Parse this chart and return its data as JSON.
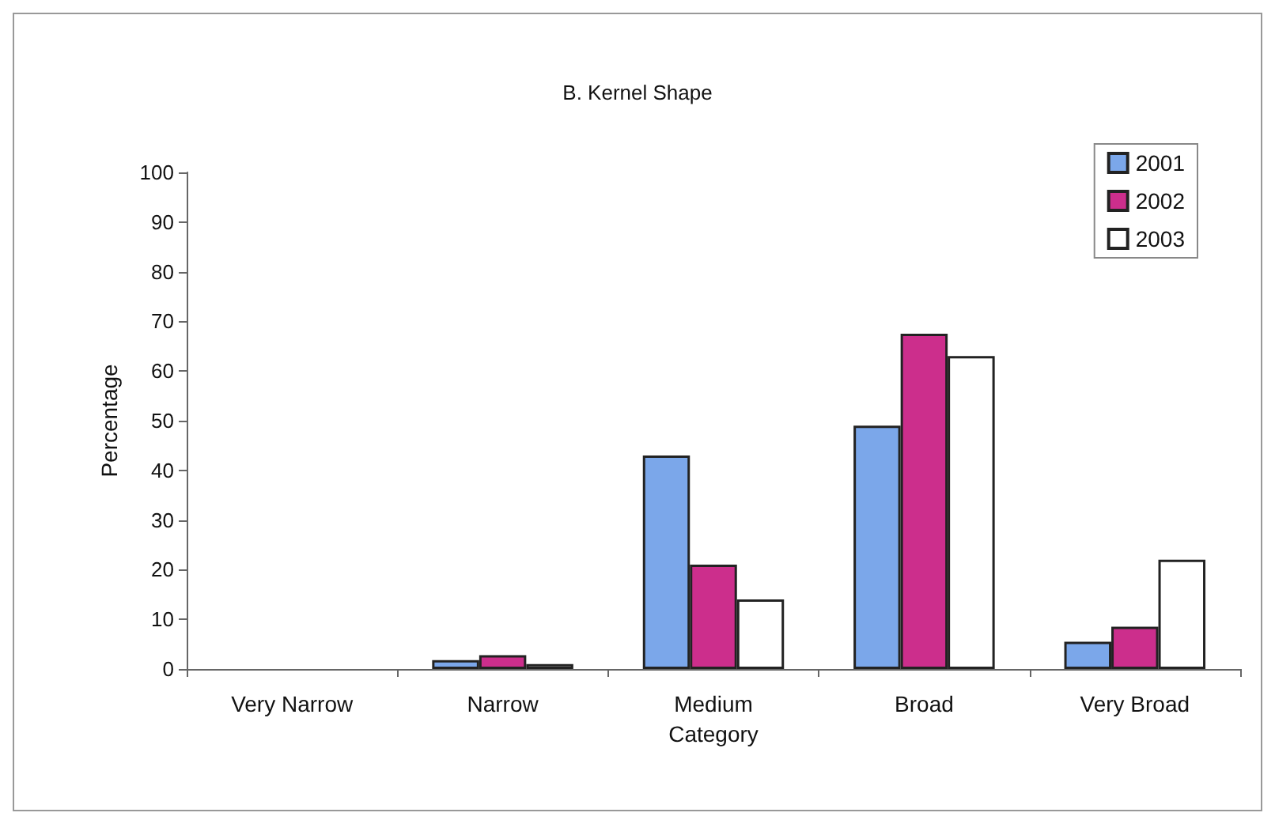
{
  "chart_data": {
    "type": "bar",
    "title": "B. Kernel Shape",
    "xlabel": "Category",
    "ylabel": "Percentage",
    "categories": [
      "Very Narrow",
      "Narrow",
      "Medium",
      "Broad",
      "Very Broad"
    ],
    "series": [
      {
        "name": "2001",
        "color": "#7ba7ea",
        "values": [
          0,
          1.8,
          43,
          49,
          5.5
        ]
      },
      {
        "name": "2002",
        "color": "#cc2e8c",
        "values": [
          0,
          2.8,
          21,
          67.5,
          8.5
        ]
      },
      {
        "name": "2003",
        "color": "#ffffff",
        "values": [
          0,
          1,
          14,
          63,
          22
        ]
      }
    ],
    "ylim": [
      0,
      100
    ],
    "yticks": [
      0,
      10,
      20,
      30,
      40,
      50,
      60,
      70,
      80,
      90,
      100
    ],
    "grid": false,
    "legend": "top right"
  }
}
